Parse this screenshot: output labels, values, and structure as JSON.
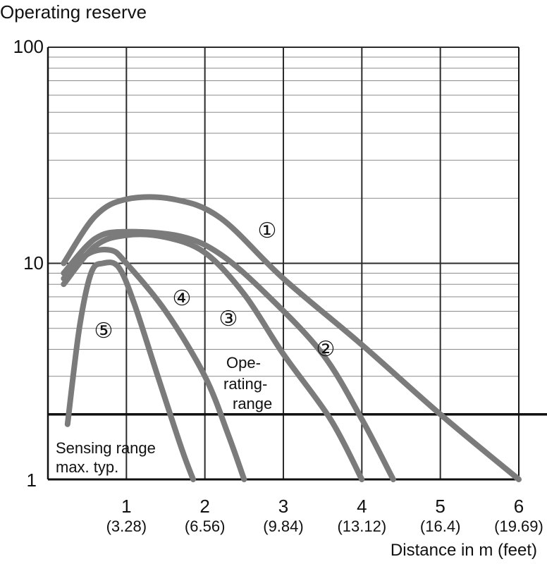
{
  "chart_data": {
    "type": "line",
    "ylabel": "Operating reserve",
    "xlabel": "Distance in m (feet)",
    "y_scale": "log",
    "ylim": [
      1,
      100
    ],
    "xlim": [
      0,
      6
    ],
    "y_ticks": [
      "1",
      "10",
      "100"
    ],
    "x_ticks": [
      {
        "value": 1,
        "label": "1",
        "sub": "(3.28)"
      },
      {
        "value": 2,
        "label": "2",
        "sub": "(6.56)"
      },
      {
        "value": 3,
        "label": "3",
        "sub": "(9.84)"
      },
      {
        "value": 4,
        "label": "4",
        "sub": "(13.12)"
      },
      {
        "value": 5,
        "label": "5",
        "sub": "(16.4)"
      },
      {
        "value": 6,
        "label": "6",
        "sub": "(19.69)"
      }
    ],
    "grid": true,
    "threshold": 2,
    "annotations": {
      "operating_range": [
        "Ope-",
        "rating-",
        "range"
      ],
      "sensing_range": [
        "Sensing range",
        "max. typ."
      ]
    },
    "series": [
      {
        "name": "①",
        "x": [
          0.2,
          0.6,
          1.0,
          1.6,
          2.2,
          3.0,
          4.0,
          5.0,
          6.0
        ],
        "y": [
          10,
          16.5,
          19.8,
          19.8,
          16.2,
          8.5,
          4.2,
          2.0,
          1.0
        ]
      },
      {
        "name": "②",
        "x": [
          0.2,
          0.6,
          1.0,
          1.7,
          2.2,
          2.8,
          3.5,
          4.0,
          4.4
        ],
        "y": [
          9,
          13,
          14,
          13.3,
          11,
          7.1,
          3.8,
          1.9,
          1.0
        ]
      },
      {
        "name": "③",
        "x": [
          0.2,
          0.6,
          1.0,
          1.5,
          2.0,
          2.5,
          3.0,
          3.6,
          4.0
        ],
        "y": [
          8,
          12,
          13.5,
          13.2,
          11.2,
          7.2,
          3.8,
          1.9,
          1.0
        ]
      },
      {
        "name": "④",
        "x": [
          0.2,
          0.5,
          0.8,
          1.0,
          1.5,
          2.0,
          2.3,
          2.5
        ],
        "y": [
          8.5,
          11,
          11.5,
          10,
          6,
          3,
          1.6,
          1.0
        ]
      },
      {
        "name": "⑤",
        "x": [
          0.25,
          0.4,
          0.55,
          0.7,
          0.9,
          1.1,
          1.4,
          1.7,
          1.85
        ],
        "y": [
          1.8,
          5,
          9,
          10,
          9.6,
          6.5,
          3,
          1.4,
          1.0
        ]
      }
    ],
    "colors": {
      "curve": "#7b7b7b",
      "grid": "#2b2b2b",
      "threshold": "#111111"
    }
  }
}
